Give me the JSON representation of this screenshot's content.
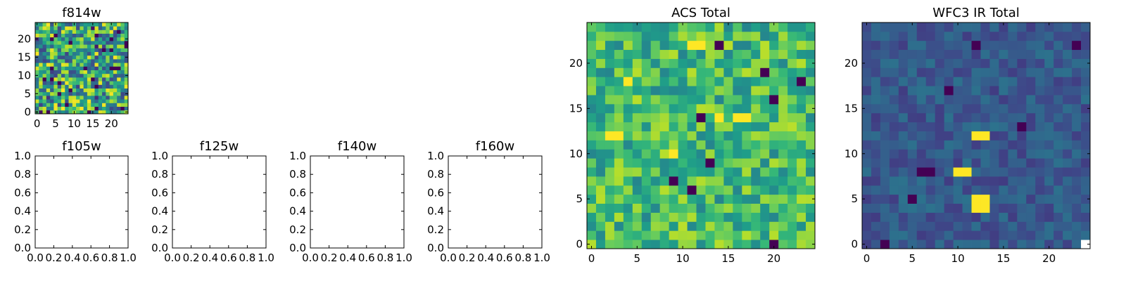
{
  "colors": {
    "colormap": "viridis",
    "axis": "#000000",
    "background": "#ffffff"
  },
  "chart_data": [
    {
      "type": "heatmap",
      "title": "f814w",
      "colormap": "viridis",
      "grid_size": [
        25,
        25
      ],
      "xlim": [
        -0.5,
        24.5
      ],
      "ylim": [
        -0.5,
        24.5
      ],
      "xticks": [
        0,
        5,
        10,
        15,
        20
      ],
      "yticks": [
        0,
        5,
        10,
        15,
        20
      ],
      "pattern": "random noise (per-pixel values not recoverable)",
      "value_range": [
        0.0,
        1.0
      ]
    },
    {
      "type": "empty",
      "title": "f105w",
      "xlim": [
        0,
        1
      ],
      "ylim": [
        0,
        1
      ],
      "xticks": [
        "0.0",
        "0.2",
        "0.4",
        "0.6",
        "0.8",
        "1.0"
      ],
      "yticks": [
        "0.0",
        "0.2",
        "0.4",
        "0.6",
        "0.8",
        "1.0"
      ]
    },
    {
      "type": "empty",
      "title": "f125w",
      "xlim": [
        0,
        1
      ],
      "ylim": [
        0,
        1
      ],
      "xticks": [
        "0.0",
        "0.2",
        "0.4",
        "0.6",
        "0.8",
        "1.0"
      ],
      "yticks": [
        "0.0",
        "0.2",
        "0.4",
        "0.6",
        "0.8",
        "1.0"
      ]
    },
    {
      "type": "empty",
      "title": "f140w",
      "xlim": [
        0,
        1
      ],
      "ylim": [
        0,
        1
      ],
      "xticks": [
        "0.0",
        "0.2",
        "0.4",
        "0.6",
        "0.8",
        "1.0"
      ],
      "yticks": [
        "0.0",
        "0.2",
        "0.4",
        "0.6",
        "0.8",
        "1.0"
      ]
    },
    {
      "type": "empty",
      "title": "f160w",
      "xlim": [
        0,
        1
      ],
      "ylim": [
        0,
        1
      ],
      "xticks": [
        "0.0",
        "0.2",
        "0.4",
        "0.6",
        "0.8",
        "1.0"
      ],
      "yticks": [
        "0.0",
        "0.2",
        "0.4",
        "0.6",
        "0.8",
        "1.0"
      ]
    },
    {
      "type": "heatmap",
      "title": "ACS Total",
      "colormap": "viridis",
      "grid_size": [
        25,
        25
      ],
      "xlim": [
        -0.5,
        24.5
      ],
      "ylim": [
        -0.5,
        24.5
      ],
      "xticks": [
        0,
        5,
        10,
        15,
        20
      ],
      "yticks": [
        0,
        5,
        10,
        15,
        20
      ],
      "pattern": "random noise, mostly mid-to-high values (per-pixel values not recoverable)",
      "value_range": [
        0.0,
        1.0
      ],
      "bright_pixels": [
        [
          11,
          22
        ],
        [
          12,
          22
        ],
        [
          14,
          14
        ],
        [
          16,
          14
        ],
        [
          17,
          14
        ],
        [
          9,
          10
        ],
        [
          4,
          18
        ],
        [
          2,
          12
        ],
        [
          3,
          12
        ]
      ],
      "dark_pixels": [
        [
          12,
          14
        ],
        [
          19,
          19
        ],
        [
          13,
          9
        ],
        [
          11,
          6
        ],
        [
          9,
          7
        ],
        [
          20,
          0
        ],
        [
          23,
          18
        ],
        [
          14,
          22
        ],
        [
          20,
          16
        ]
      ]
    },
    {
      "type": "heatmap",
      "title": "WFC3 IR Total",
      "colormap": "viridis",
      "grid_size": [
        25,
        25
      ],
      "xlim": [
        -0.5,
        24.5
      ],
      "ylim": [
        -0.5,
        24.5
      ],
      "xticks": [
        0,
        5,
        10,
        15,
        20
      ],
      "yticks": [
        0,
        5,
        10,
        15,
        20
      ],
      "pattern": "low-level noise with a few bright sources (per-pixel values not recoverable)",
      "value_range": [
        0.0,
        1.0
      ],
      "bright_pixels": [
        [
          10,
          8
        ],
        [
          11,
          8
        ],
        [
          12,
          4
        ],
        [
          13,
          4
        ],
        [
          12,
          5
        ],
        [
          13,
          5
        ],
        [
          12,
          12
        ],
        [
          13,
          12
        ]
      ],
      "dark_pixels": [
        [
          6,
          8
        ],
        [
          7,
          8
        ],
        [
          12,
          22
        ],
        [
          9,
          17
        ],
        [
          5,
          5
        ],
        [
          2,
          0
        ],
        [
          17,
          13
        ],
        [
          23,
          22
        ]
      ],
      "nan_pixels": [
        [
          24,
          0
        ]
      ]
    }
  ]
}
